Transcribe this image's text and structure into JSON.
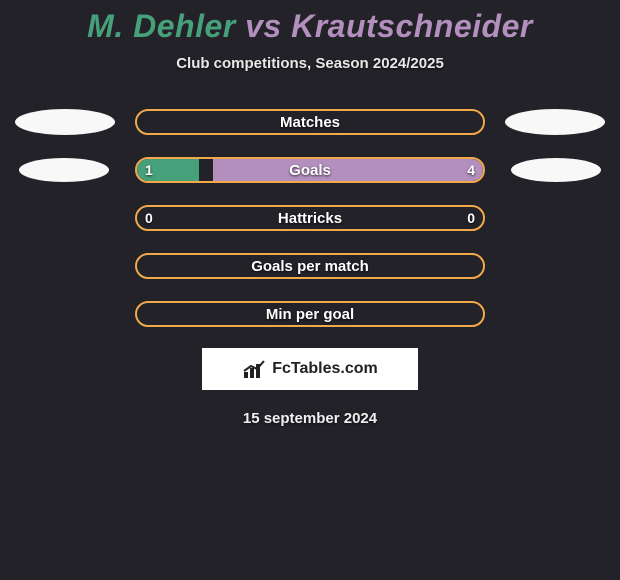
{
  "title": {
    "player1": "M. Dehler",
    "vs": "vs",
    "player2": "Krautschneider"
  },
  "subtitle": "Club competitions, Season 2024/2025",
  "colors": {
    "player1": "#46a07a",
    "player2": "#b28fbd",
    "bar_border": "#f0a84a",
    "background": "#222228",
    "marker": "#f8f8f8"
  },
  "stats": [
    {
      "label": "Matches",
      "left_val": "",
      "right_val": "",
      "show_markers": true,
      "marker_class": "",
      "left_pct": 0,
      "right_pct": 0
    },
    {
      "label": "Goals",
      "left_val": "1",
      "right_val": "4",
      "show_markers": true,
      "marker_class": "inset",
      "left_pct": 18,
      "right_pct": 78
    },
    {
      "label": "Hattricks",
      "left_val": "0",
      "right_val": "0",
      "show_markers": false,
      "marker_class": "",
      "left_pct": 0,
      "right_pct": 0
    },
    {
      "label": "Goals per match",
      "left_val": "",
      "right_val": "",
      "show_markers": false,
      "marker_class": "",
      "left_pct": 0,
      "right_pct": 0
    },
    {
      "label": "Min per goal",
      "left_val": "",
      "right_val": "",
      "show_markers": false,
      "marker_class": "",
      "left_pct": 0,
      "right_pct": 0
    }
  ],
  "branding": "FcTables.com",
  "date": "15 september 2024"
}
